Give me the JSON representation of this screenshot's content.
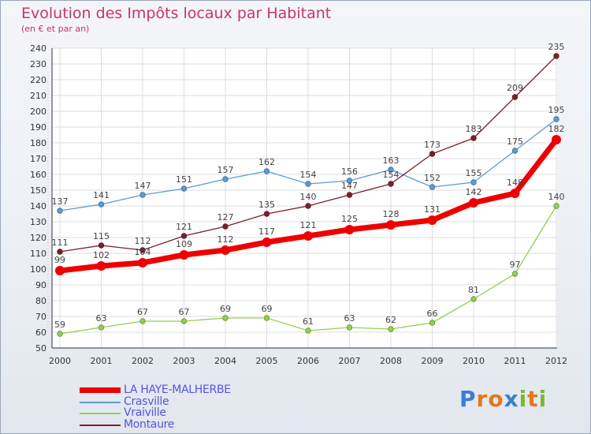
{
  "title": "Evolution des Impôts locaux par Habitant",
  "subtitle": "(en € et par an)",
  "logo": {
    "letters": [
      "P",
      "r",
      "o",
      "x",
      "i",
      "t",
      "i"
    ],
    "colors": [
      "#3a7fd0",
      "#e07a1a",
      "#e07a1a",
      "#3a7fd0",
      "#7ab934",
      "#e07a1a",
      "#7ab934"
    ]
  },
  "chart_data": {
    "type": "line",
    "title": "Evolution des Impôts locaux par Habitant",
    "ylabel": "(en € et par an)",
    "x": [
      "2000",
      "2001",
      "2002",
      "2003",
      "2004",
      "2005",
      "2006",
      "2007",
      "2008",
      "2009",
      "2010",
      "2011",
      "2012"
    ],
    "ylim": [
      50,
      240
    ],
    "yticks": [
      "50",
      "60",
      "70",
      "80",
      "90",
      "100",
      "110",
      "120",
      "130",
      "140",
      "150",
      "160",
      "170",
      "180",
      "190",
      "200",
      "210",
      "220",
      "230",
      "240"
    ],
    "grid": true,
    "legend": "bottom-left",
    "series": [
      {
        "name": "Crasville",
        "color": "#5b9bd5",
        "values": [
          137,
          141,
          147,
          151,
          157,
          162,
          154,
          156,
          163,
          152,
          155,
          175,
          195
        ]
      },
      {
        "name": "Vraiville",
        "color": "#92d050",
        "values": [
          59,
          63,
          67,
          67,
          69,
          69,
          61,
          63,
          62,
          66,
          81,
          97,
          140
        ]
      },
      {
        "name": "Montaure",
        "color": "#7f1f2a",
        "values": [
          111,
          115,
          112,
          121,
          127,
          135,
          140,
          147,
          154,
          173,
          183,
          209,
          235
        ]
      },
      {
        "name": "LA HAYE-MALHERBE",
        "color": "#ee0000",
        "values": [
          99,
          102,
          104,
          109,
          112,
          117,
          121,
          125,
          128,
          131,
          142,
          148,
          182
        ]
      }
    ],
    "legend_order": [
      "LA HAYE-MALHERBE",
      "Crasville",
      "Vraiville",
      "Montaure"
    ]
  }
}
